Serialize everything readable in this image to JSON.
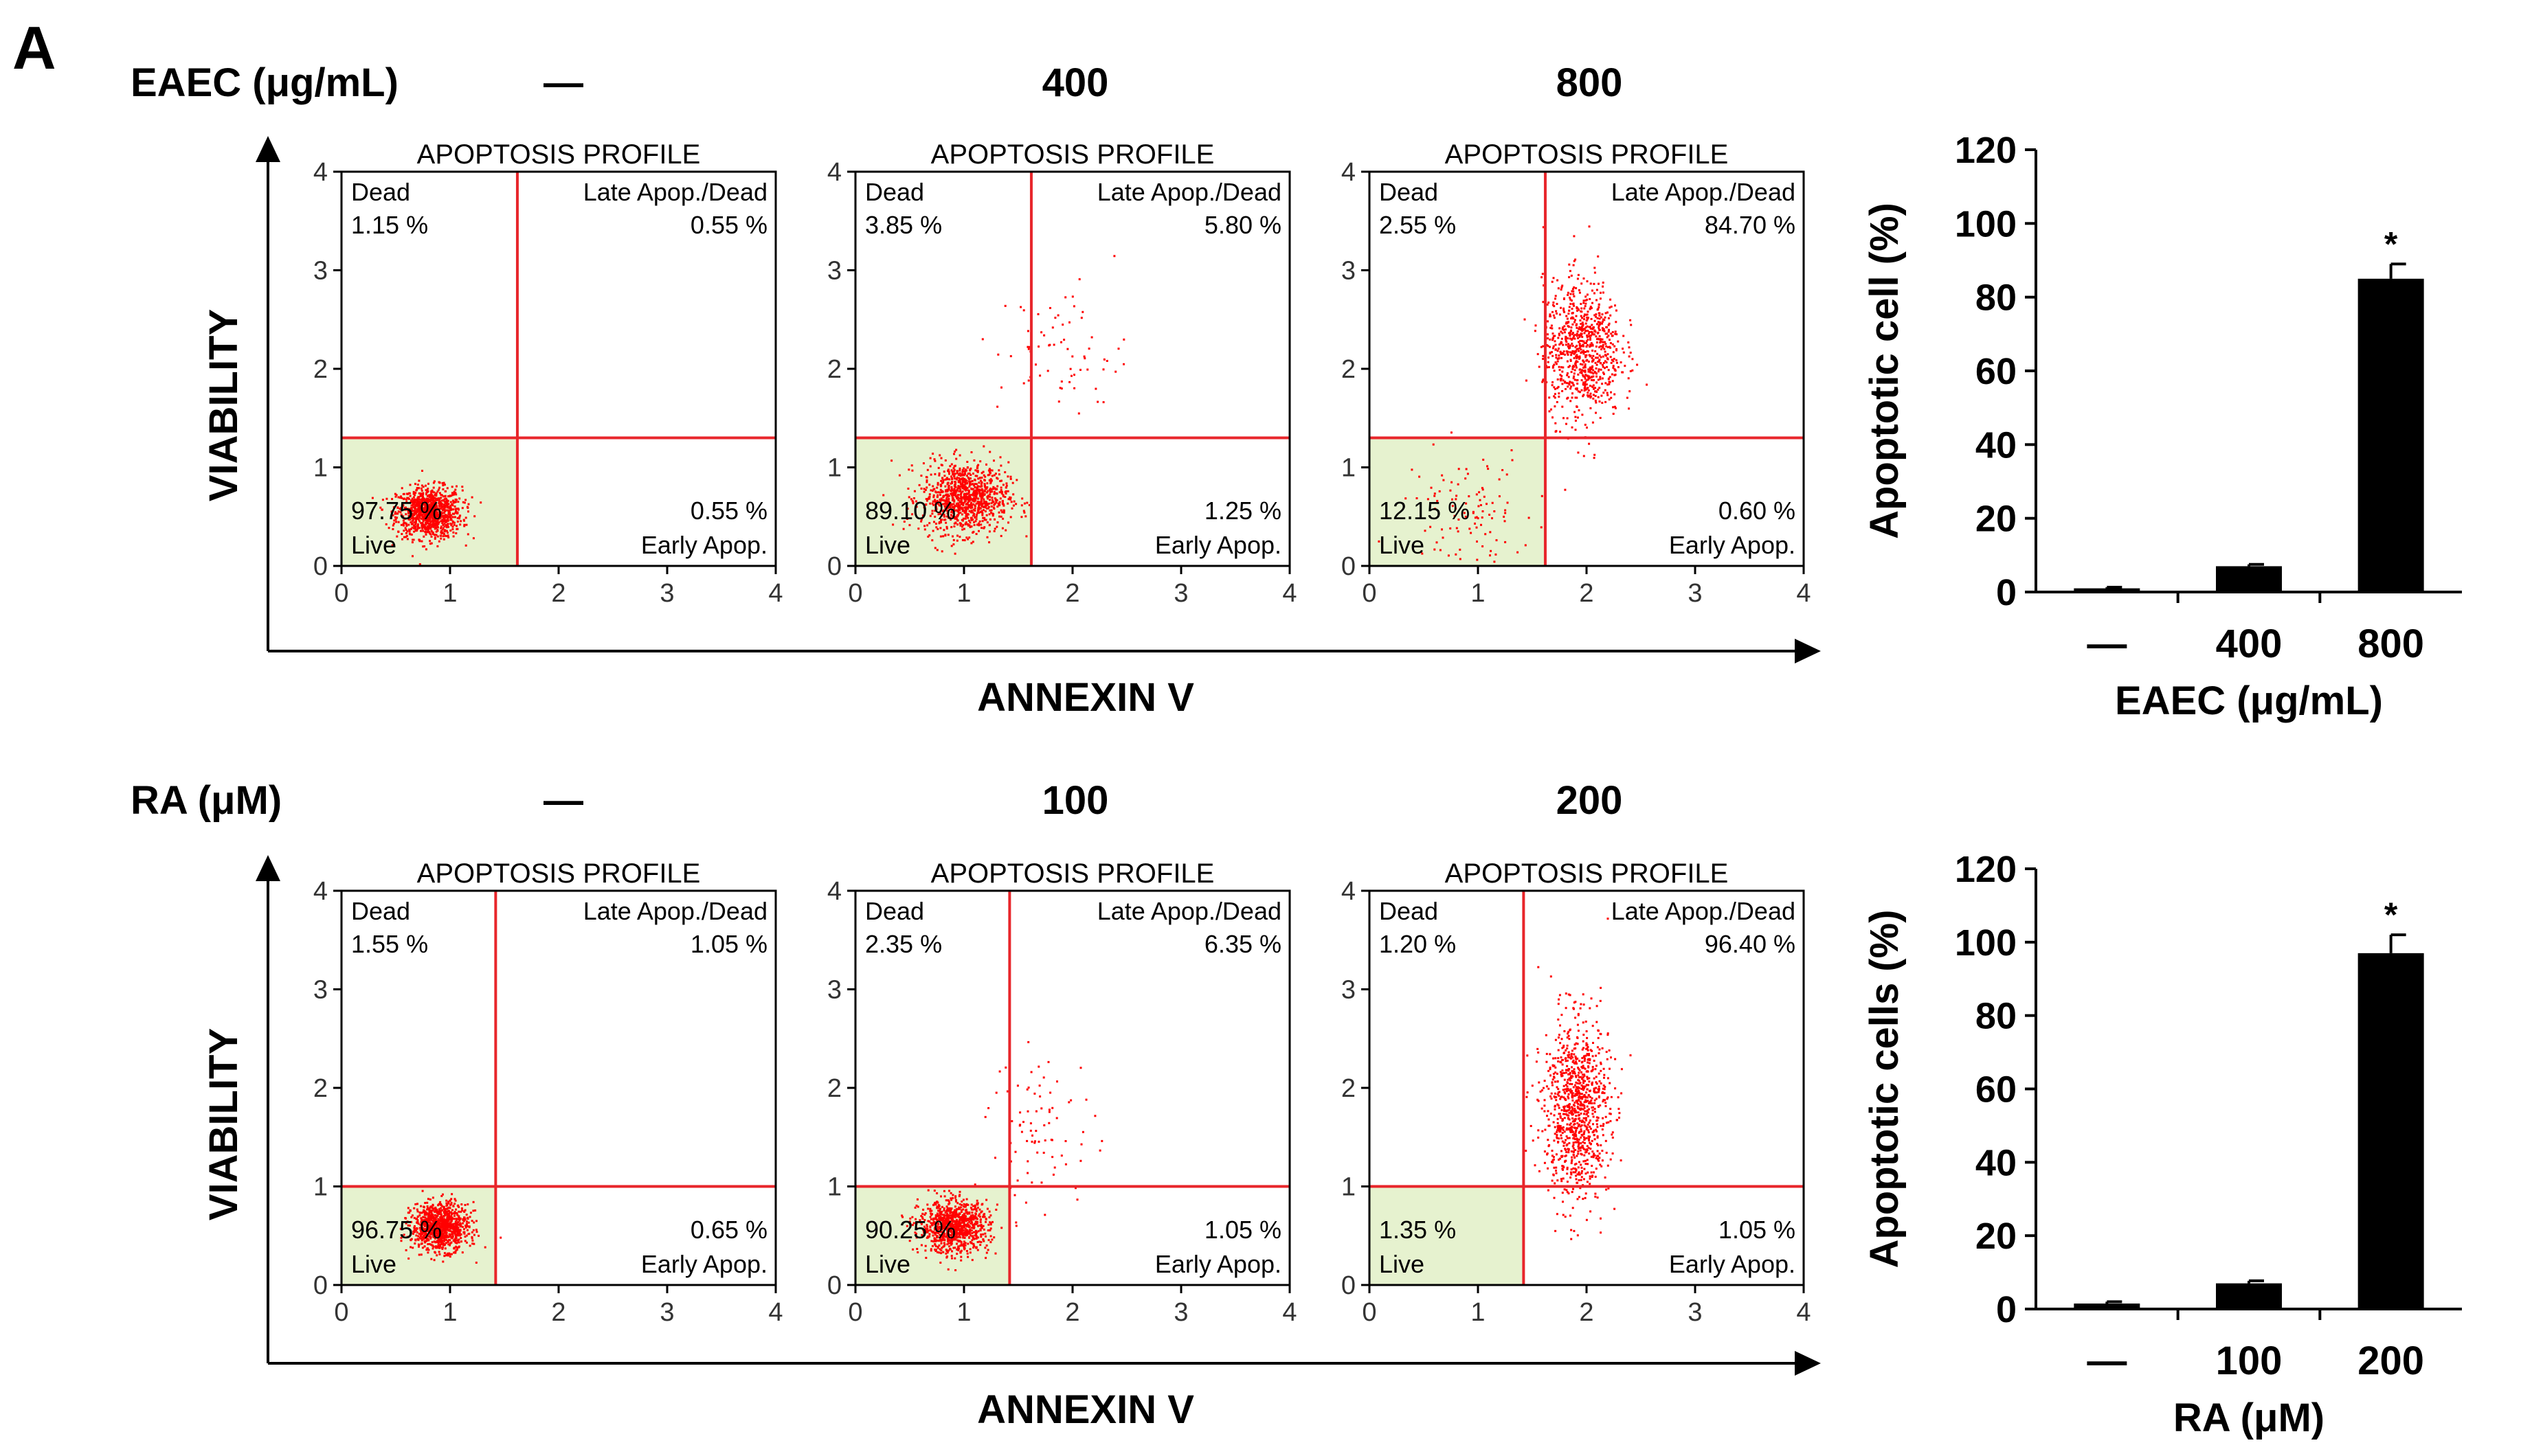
{
  "panel_label": "A",
  "colors": {
    "dot": "#ff0000",
    "gate_line": "#e8262b",
    "live_fill": "#e6f2cf",
    "bar": "#000000"
  },
  "rows": [
    {
      "treatment_label": "EAEC (μg/mL)",
      "y_axis_label": "VIABILITY",
      "x_axis_label": "ANNEXIN V",
      "plots": [
        {
          "dose": "—",
          "title": "APOPTOSIS PROFILE",
          "dead_label": "Dead",
          "dead_pct": "1.15 %",
          "late_label": "Late Apop./Dead",
          "late_pct": "0.55 %",
          "live_label": "Live",
          "live_pct": "97.75 %",
          "early_label": "Early Apop.",
          "early_pct": "0.55 %"
        },
        {
          "dose": "400",
          "title": "APOPTOSIS PROFILE",
          "dead_label": "Dead",
          "dead_pct": "3.85 %",
          "late_label": "Late Apop./Dead",
          "late_pct": "5.80 %",
          "live_label": "Live",
          "live_pct": "89.10 %",
          "early_label": "Early Apop.",
          "early_pct": "1.25 %"
        },
        {
          "dose": "800",
          "title": "APOPTOSIS PROFILE",
          "dead_label": "Dead",
          "dead_pct": "2.55 %",
          "late_label": "Late Apop./Dead",
          "late_pct": "84.70 %",
          "live_label": "Live",
          "live_pct": "12.15 %",
          "early_label": "Early Apop.",
          "early_pct": "0.60 %"
        }
      ]
    },
    {
      "treatment_label": "RA (μM)",
      "y_axis_label": "VIABILITY",
      "x_axis_label": "ANNEXIN V",
      "plots": [
        {
          "dose": "—",
          "title": "APOPTOSIS PROFILE",
          "dead_label": "Dead",
          "dead_pct": "1.55 %",
          "late_label": "Late Apop./Dead",
          "late_pct": "1.05 %",
          "live_label": "Live",
          "live_pct": "96.75 %",
          "early_label": "Early Apop.",
          "early_pct": "0.65 %"
        },
        {
          "dose": "100",
          "title": "APOPTOSIS PROFILE",
          "dead_label": "Dead",
          "dead_pct": "2.35 %",
          "late_label": "Late Apop./Dead",
          "late_pct": "6.35 %",
          "live_label": "Live",
          "live_pct": "90.25 %",
          "early_label": "Early Apop.",
          "early_pct": "1.05 %"
        },
        {
          "dose": "200",
          "title": "APOPTOSIS PROFILE",
          "dead_label": "Dead",
          "dead_pct": "1.20 %",
          "late_label": "Late Apop./Dead",
          "late_pct": "96.40 %",
          "live_label": "Live",
          "live_pct": "1.35 %",
          "early_label": "Early Apop.",
          "early_pct": "1.05 %"
        }
      ]
    }
  ],
  "chart_data": [
    {
      "type": "scatter",
      "title": "APOPTOSIS PROFILE",
      "xlabel": "ANNEXIN V",
      "ylabel": "VIABILITY",
      "xlim": [
        0,
        4
      ],
      "ylim": [
        0,
        4
      ],
      "xticks": [
        "0",
        "1",
        "2",
        "3",
        "4"
      ],
      "yticks": [
        "0",
        "1",
        "2",
        "3",
        "4"
      ],
      "gates": {
        "x": 1.62,
        "y": 1.3
      },
      "quadrants": {
        "Dead": 1.15,
        "Late Apop./Dead": 0.55,
        "Live": 97.75,
        "Early Apop.": 0.55
      },
      "clusters": [
        {
          "x": 0.8,
          "y": 0.55,
          "n": 1000,
          "sx": 0.15,
          "sy": 0.13
        }
      ]
    },
    {
      "type": "scatter",
      "title": "APOPTOSIS PROFILE",
      "xlabel": "ANNEXIN V",
      "ylabel": "VIABILITY",
      "xlim": [
        0,
        4
      ],
      "ylim": [
        0,
        4
      ],
      "xticks": [
        "0",
        "1",
        "2",
        "3",
        "4"
      ],
      "yticks": [
        "0",
        "1",
        "2",
        "3",
        "4"
      ],
      "gates": {
        "x": 1.62,
        "y": 1.3
      },
      "quadrants": {
        "Dead": 3.85,
        "Late Apop./Dead": 5.8,
        "Live": 89.1,
        "Early Apop.": 1.25
      },
      "clusters": [
        {
          "x": 1.0,
          "y": 0.7,
          "n": 1000,
          "sx": 0.2,
          "sy": 0.18
        },
        {
          "x": 1.9,
          "y": 2.2,
          "n": 70,
          "sx": 0.3,
          "sy": 0.35
        }
      ]
    },
    {
      "type": "scatter",
      "title": "APOPTOSIS PROFILE",
      "xlabel": "ANNEXIN V",
      "ylabel": "VIABILITY",
      "xlim": [
        0,
        4
      ],
      "ylim": [
        0,
        4
      ],
      "xticks": [
        "0",
        "1",
        "2",
        "3",
        "4"
      ],
      "yticks": [
        "0",
        "1",
        "2",
        "3",
        "4"
      ],
      "gates": {
        "x": 1.62,
        "y": 1.3
      },
      "quadrants": {
        "Dead": 2.55,
        "Late Apop./Dead": 84.7,
        "Live": 12.15,
        "Early Apop.": 0.6
      },
      "clusters": [
        {
          "x": 1.95,
          "y": 2.2,
          "n": 850,
          "sx": 0.18,
          "sy": 0.35
        },
        {
          "x": 0.9,
          "y": 0.6,
          "n": 110,
          "sx": 0.3,
          "sy": 0.3
        }
      ]
    },
    {
      "type": "scatter",
      "title": "APOPTOSIS PROFILE",
      "xlabel": "ANNEXIN V",
      "ylabel": "VIABILITY",
      "xlim": [
        0,
        4
      ],
      "ylim": [
        0,
        4
      ],
      "xticks": [
        "0",
        "1",
        "2",
        "3",
        "4"
      ],
      "yticks": [
        "0",
        "1",
        "2",
        "3",
        "4"
      ],
      "gates": {
        "x": 1.42,
        "y": 1.0
      },
      "quadrants": {
        "Dead": 1.55,
        "Late Apop./Dead": 1.05,
        "Live": 96.75,
        "Early Apop.": 0.65
      },
      "clusters": [
        {
          "x": 0.9,
          "y": 0.6,
          "n": 1000,
          "sx": 0.13,
          "sy": 0.12
        }
      ]
    },
    {
      "type": "scatter",
      "title": "APOPTOSIS PROFILE",
      "xlabel": "ANNEXIN V",
      "ylabel": "VIABILITY",
      "xlim": [
        0,
        4
      ],
      "ylim": [
        0,
        4
      ],
      "xticks": [
        "0",
        "1",
        "2",
        "3",
        "4"
      ],
      "yticks": [
        "0",
        "1",
        "2",
        "3",
        "4"
      ],
      "gates": {
        "x": 1.42,
        "y": 1.0
      },
      "quadrants": {
        "Dead": 2.35,
        "Late Apop./Dead": 6.35,
        "Live": 90.25,
        "Early Apop.": 1.05
      },
      "clusters": [
        {
          "x": 0.9,
          "y": 0.6,
          "n": 950,
          "sx": 0.16,
          "sy": 0.13
        },
        {
          "x": 1.7,
          "y": 1.6,
          "n": 80,
          "sx": 0.25,
          "sy": 0.4
        }
      ]
    },
    {
      "type": "scatter",
      "title": "APOPTOSIS PROFILE",
      "xlabel": "ANNEXIN V",
      "ylabel": "VIABILITY",
      "xlim": [
        0,
        4
      ],
      "ylim": [
        0,
        4
      ],
      "xticks": [
        "0",
        "1",
        "2",
        "3",
        "4"
      ],
      "yticks": [
        "0",
        "1",
        "2",
        "3",
        "4"
      ],
      "gates": {
        "x": 1.42,
        "y": 1.0
      },
      "quadrants": {
        "Dead": 1.2,
        "Late Apop./Dead": 96.4,
        "Live": 1.35,
        "Early Apop.": 1.05
      },
      "clusters": [
        {
          "x": 1.9,
          "y": 1.8,
          "n": 1000,
          "sx": 0.15,
          "sy": 0.45
        }
      ]
    },
    {
      "type": "bar",
      "title": "",
      "categories": [
        "—",
        "400",
        "800"
      ],
      "values": [
        1,
        7,
        85
      ],
      "errors": [
        0.3,
        0.5,
        4
      ],
      "significance": [
        "",
        "",
        "*"
      ],
      "xlabel": "EAEC (μg/mL)",
      "ylabel": "Apoptotic cell (%)",
      "ylim": [
        0,
        120
      ],
      "yticks": [
        "0",
        "20",
        "40",
        "60",
        "80",
        "100",
        "120"
      ]
    },
    {
      "type": "bar",
      "title": "",
      "categories": [
        "—",
        "100",
        "200"
      ],
      "values": [
        1.5,
        7,
        97
      ],
      "errors": [
        0.5,
        0.7,
        5
      ],
      "significance": [
        "",
        "",
        "*"
      ],
      "xlabel": "RA (μM)",
      "ylabel": "Apoptotic cells (%)",
      "ylim": [
        0,
        120
      ],
      "yticks": [
        "0",
        "20",
        "40",
        "60",
        "80",
        "100",
        "120"
      ]
    }
  ]
}
